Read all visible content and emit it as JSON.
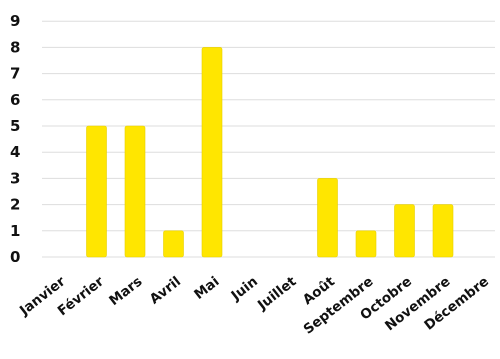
{
  "chart_data": {
    "type": "bar",
    "categories": [
      "Janvier",
      "Février",
      "Mars",
      "Avril",
      "Mai",
      "Juin",
      "Juillet",
      "Août",
      "Septembre",
      "Octobre",
      "Novembre",
      "Décembre"
    ],
    "values": [
      0,
      5,
      5,
      1,
      8,
      0,
      0,
      3,
      1,
      2,
      2,
      0
    ],
    "title": "",
    "xlabel": "",
    "ylabel": "",
    "ylim": [
      0,
      9
    ],
    "yticks": [
      "0",
      "1",
      "2",
      "3",
      "4",
      "5",
      "6",
      "7",
      "8",
      "9"
    ],
    "grid": true,
    "legend": "none",
    "colors": {
      "bar": "#FFE600",
      "bar_edge": "#E8D000",
      "grid": "#DDDDDD",
      "text": "#111111"
    }
  }
}
